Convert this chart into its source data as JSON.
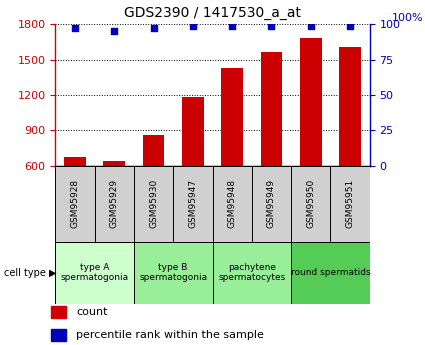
{
  "title": "GDS2390 / 1417530_a_at",
  "samples": [
    "GSM95928",
    "GSM95929",
    "GSM95930",
    "GSM95947",
    "GSM95948",
    "GSM95949",
    "GSM95950",
    "GSM95951"
  ],
  "counts": [
    670,
    640,
    860,
    1185,
    1430,
    1560,
    1680,
    1610
  ],
  "percentile_ranks": [
    97,
    95,
    97,
    99,
    99,
    99,
    99,
    99
  ],
  "ylim_left": [
    600,
    1800
  ],
  "ylim_right": [
    0,
    100
  ],
  "yticks_left": [
    600,
    900,
    1200,
    1500,
    1800
  ],
  "yticks_right": [
    0,
    25,
    50,
    75,
    100
  ],
  "bar_color": "#cc0000",
  "dot_color": "#0000bb",
  "cell_types": [
    {
      "label": "type A\nspermatogonia",
      "start": 0,
      "end": 2,
      "color": "#ccffcc"
    },
    {
      "label": "type B\nspermatogonia",
      "start": 2,
      "end": 4,
      "color": "#99ee99"
    },
    {
      "label": "pachytene\nspermatocytes",
      "start": 4,
      "end": 6,
      "color": "#99ee99"
    },
    {
      "label": "round spermatids",
      "start": 6,
      "end": 8,
      "color": "#55cc55"
    }
  ],
  "legend_count_label": "count",
  "legend_percentile_label": "percentile rank within the sample",
  "left_axis_color": "#cc0000",
  "right_axis_color": "#0000bb",
  "sample_box_color": "#d0d0d0",
  "right_axis_label": "100%"
}
